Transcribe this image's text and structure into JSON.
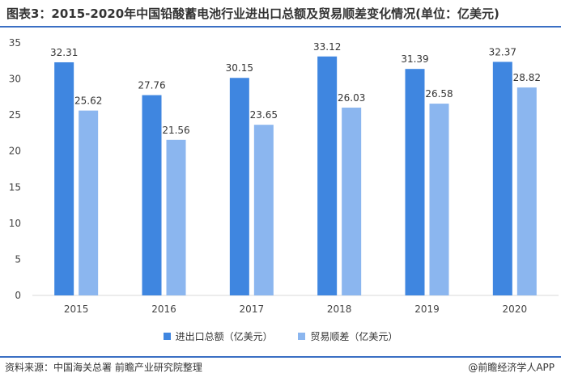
{
  "title": "图表3：2015-2020年中国铅酸蓄电池行业进出口总额及贸易顺差变化情况(单位：亿美元)",
  "source": "资料来源：中国海关总署 前瞻产业研究院整理",
  "brand": "@前瞻经济学人APP",
  "colors": {
    "accent": "#3a6fc4",
    "series1": "#3f86e0",
    "series2": "#8bb6ef"
  },
  "chart_data": {
    "type": "bar",
    "categories": [
      "2015",
      "2016",
      "2017",
      "2018",
      "2019",
      "2020"
    ],
    "series": [
      {
        "name": "进出口总额（亿美元）",
        "values": [
          32.31,
          27.76,
          30.15,
          33.12,
          31.39,
          32.37
        ]
      },
      {
        "name": "贸易顺差（亿美元）",
        "values": [
          25.62,
          21.56,
          23.65,
          26.03,
          26.58,
          28.82
        ]
      }
    ],
    "ylim": [
      0,
      35
    ],
    "yticks": [
      0,
      5,
      10,
      15,
      20,
      25,
      30,
      35
    ],
    "legend_position": "bottom",
    "grid": false
  }
}
